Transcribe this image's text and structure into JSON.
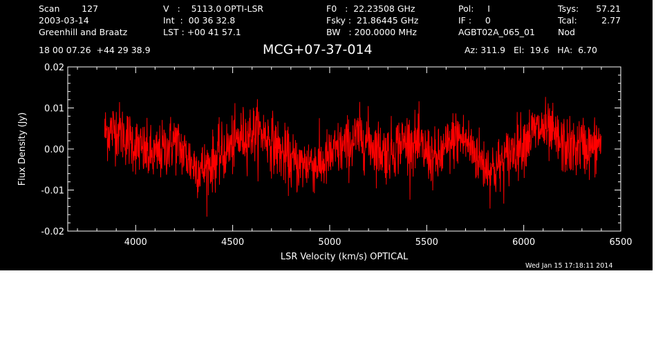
{
  "header": {
    "col1": [
      "Scan        127",
      "2003-03-14",
      "Greenhill and Braatz"
    ],
    "col2": [
      "V   :    5113.0 OPTI-LSR",
      "Int  :  00 36 32.8",
      "LST : +00 41 57.1"
    ],
    "col3": [
      "F0   :  22.23508 GHz",
      "Fsky :  21.86445 GHz",
      "BW   : 200.0000 MHz"
    ],
    "col4": [
      "Pol:     I",
      "IF :     0",
      "AGBT02A_065_01"
    ],
    "col5": [
      "Tsys:",
      "Tcal:",
      "Nod"
    ],
    "col6": [
      "57.21",
      "2.77"
    ],
    "coords": "18 00 07.26  +44 29 38.9",
    "object": "MCG+07-37-014",
    "pointing": "Az: 311.9   El:  19.6   HA:  6.70",
    "timestamp": "Wed Jan 15 17:18:11 2014"
  },
  "colors": {
    "background": "#000000",
    "trace": "#ff0000",
    "axes": "#ffffff"
  },
  "chart_data": {
    "type": "line",
    "title": "",
    "xlabel": "LSR Velocity (km/s) OPTICAL",
    "ylabel": "Flux Density (Jy)",
    "xlim": [
      3650,
      6500
    ],
    "ylim": [
      -0.02,
      0.02
    ],
    "xticks": [
      4000,
      4500,
      5000,
      5500,
      6000,
      6500
    ],
    "xtick_labels": [
      "4000",
      "4500",
      "5000",
      "5500",
      "6000",
      "6500"
    ],
    "yticks": [
      -0.02,
      -0.01,
      0.0,
      0.01,
      0.02
    ],
    "ytick_labels": [
      "-0.02",
      "-0.01",
      "0.00",
      "0.01",
      "0.02"
    ],
    "grid": false,
    "series": [
      {
        "x": [
          3840,
          3900,
          3950,
          4000,
          4050,
          4100,
          4150,
          4200,
          4250,
          4300,
          4350,
          4400,
          4450,
          4500,
          4550,
          4600,
          4650,
          4700,
          4750,
          4800,
          4850,
          4900,
          4950,
          5000,
          5050,
          5100,
          5150,
          5200,
          5250,
          5300,
          5350,
          5400,
          5450,
          5500,
          5550,
          5600,
          5650,
          5700,
          5750,
          5800,
          5850,
          5900,
          5950,
          6000,
          6050,
          6100,
          6150,
          6200,
          6250,
          6300,
          6350,
          6400
        ],
        "y": [
          0.004,
          0.005,
          0.003,
          0.001,
          -0.001,
          -0.002,
          0.0,
          0.002,
          -0.001,
          -0.004,
          -0.005,
          -0.003,
          -0.001,
          0.001,
          0.003,
          0.004,
          0.004,
          0.002,
          -0.001,
          -0.003,
          -0.004,
          -0.003,
          -0.004,
          -0.002,
          0.0,
          0.001,
          0.003,
          0.002,
          0.0,
          -0.001,
          0.001,
          0.002,
          0.001,
          -0.001,
          -0.003,
          0.0,
          0.003,
          0.002,
          -0.001,
          -0.004,
          -0.005,
          -0.003,
          0.0,
          0.002,
          0.004,
          0.005,
          0.003,
          0.001,
          0.0,
          0.001,
          0.0,
          0.002
        ]
      }
    ],
    "noise_rms": 0.0035
  }
}
